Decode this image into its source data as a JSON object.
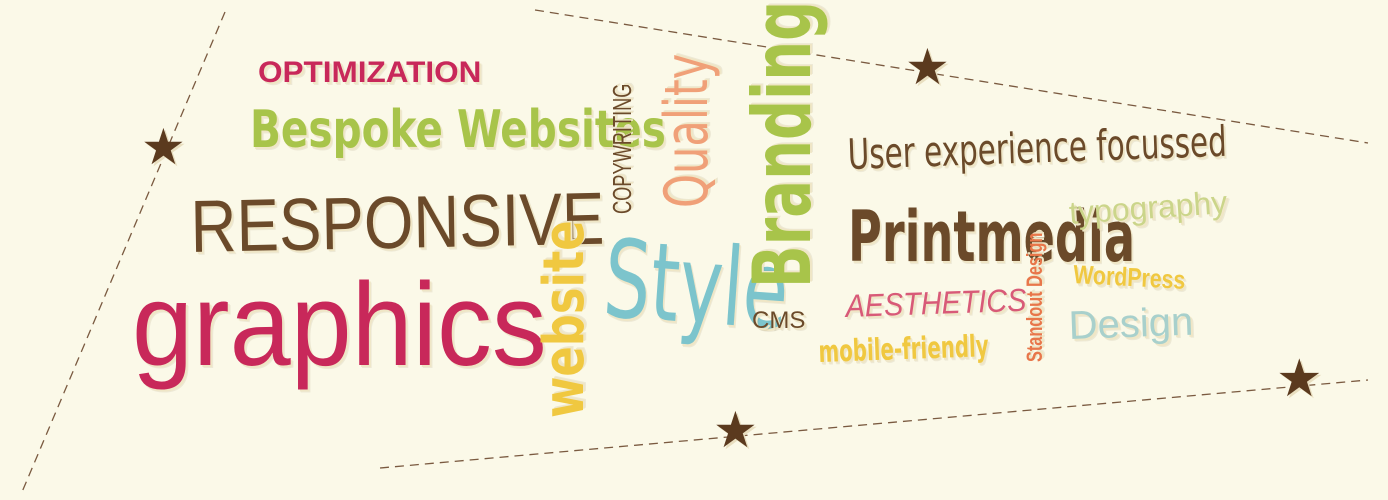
{
  "colors": {
    "background": "#fbf9e8",
    "brown": "#6b4a2a",
    "crimson": "#c8285a",
    "lime": "#a8c44a",
    "peach": "#f0a078",
    "teal": "#7cc4cc",
    "yellow": "#f0c840",
    "coral": "#e8764a",
    "pink": "#d85a78",
    "pale_green": "#cbd58a",
    "pale_teal": "#a8d0cc",
    "star": "#5b3a1e",
    "dash": "#7a5a40"
  },
  "words": {
    "optimization": "OPTIMIZATION",
    "bespoke": "Bespoke Websites",
    "responsive": "RESPONSIVE",
    "graphics": "graphics",
    "website": "website",
    "copywriting": "COPYWRITING",
    "quality": "Quality",
    "style": "Style",
    "branding": "Branding",
    "cms": "CMS",
    "ux": "User experience focussed",
    "printmedia": "Printmedia",
    "aesthetics": "AESTHETICS",
    "mobile": "mobile-friendly",
    "standout": "Standout Design",
    "typography": "typography",
    "wordpress": "WordPress",
    "design": "Design"
  },
  "icons": {
    "star": "★"
  }
}
